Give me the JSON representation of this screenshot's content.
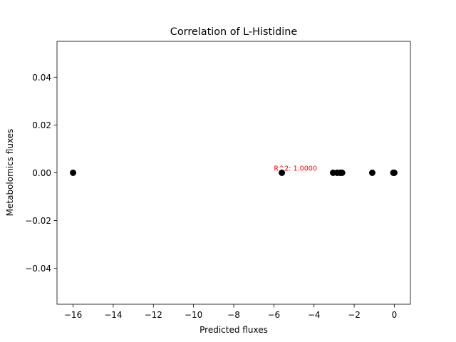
{
  "chart_data": {
    "type": "scatter",
    "title": "Correlation of L-Histidine",
    "xlabel": "Predicted fluxes",
    "ylabel": "Metabolomics fluxes",
    "xlim": [
      -16.8,
      0.8
    ],
    "ylim": [
      -0.055,
      0.055
    ],
    "x_ticks": [
      -16,
      -14,
      -12,
      -10,
      -8,
      -6,
      -4,
      -2,
      0
    ],
    "x_tick_labels": [
      "−16",
      "−14",
      "−12",
      "−10",
      "−8",
      "−6",
      "−4",
      "−2",
      "0"
    ],
    "y_ticks": [
      0.04,
      0.02,
      0.0,
      -0.02,
      -0.04
    ],
    "y_tick_labels": [
      "0.04",
      "0.02",
      "0.00",
      "−0.02",
      "−0.04"
    ],
    "grid": false,
    "marker_color": "#000000",
    "points": [
      {
        "x": -16.0,
        "y": 0.0
      },
      {
        "x": -5.6,
        "y": 0.0
      },
      {
        "x": -3.05,
        "y": 0.0
      },
      {
        "x": -2.85,
        "y": 0.0
      },
      {
        "x": -2.7,
        "y": 0.0
      },
      {
        "x": -2.6,
        "y": 0.0
      },
      {
        "x": -1.1,
        "y": 0.0
      },
      {
        "x": -0.05,
        "y": 0.0
      },
      {
        "x": 0.0,
        "y": 0.0
      }
    ],
    "annotation": {
      "text": "R^2: 1.0000",
      "x": -6.0,
      "y": 0.0,
      "color": "#ff0000"
    }
  }
}
